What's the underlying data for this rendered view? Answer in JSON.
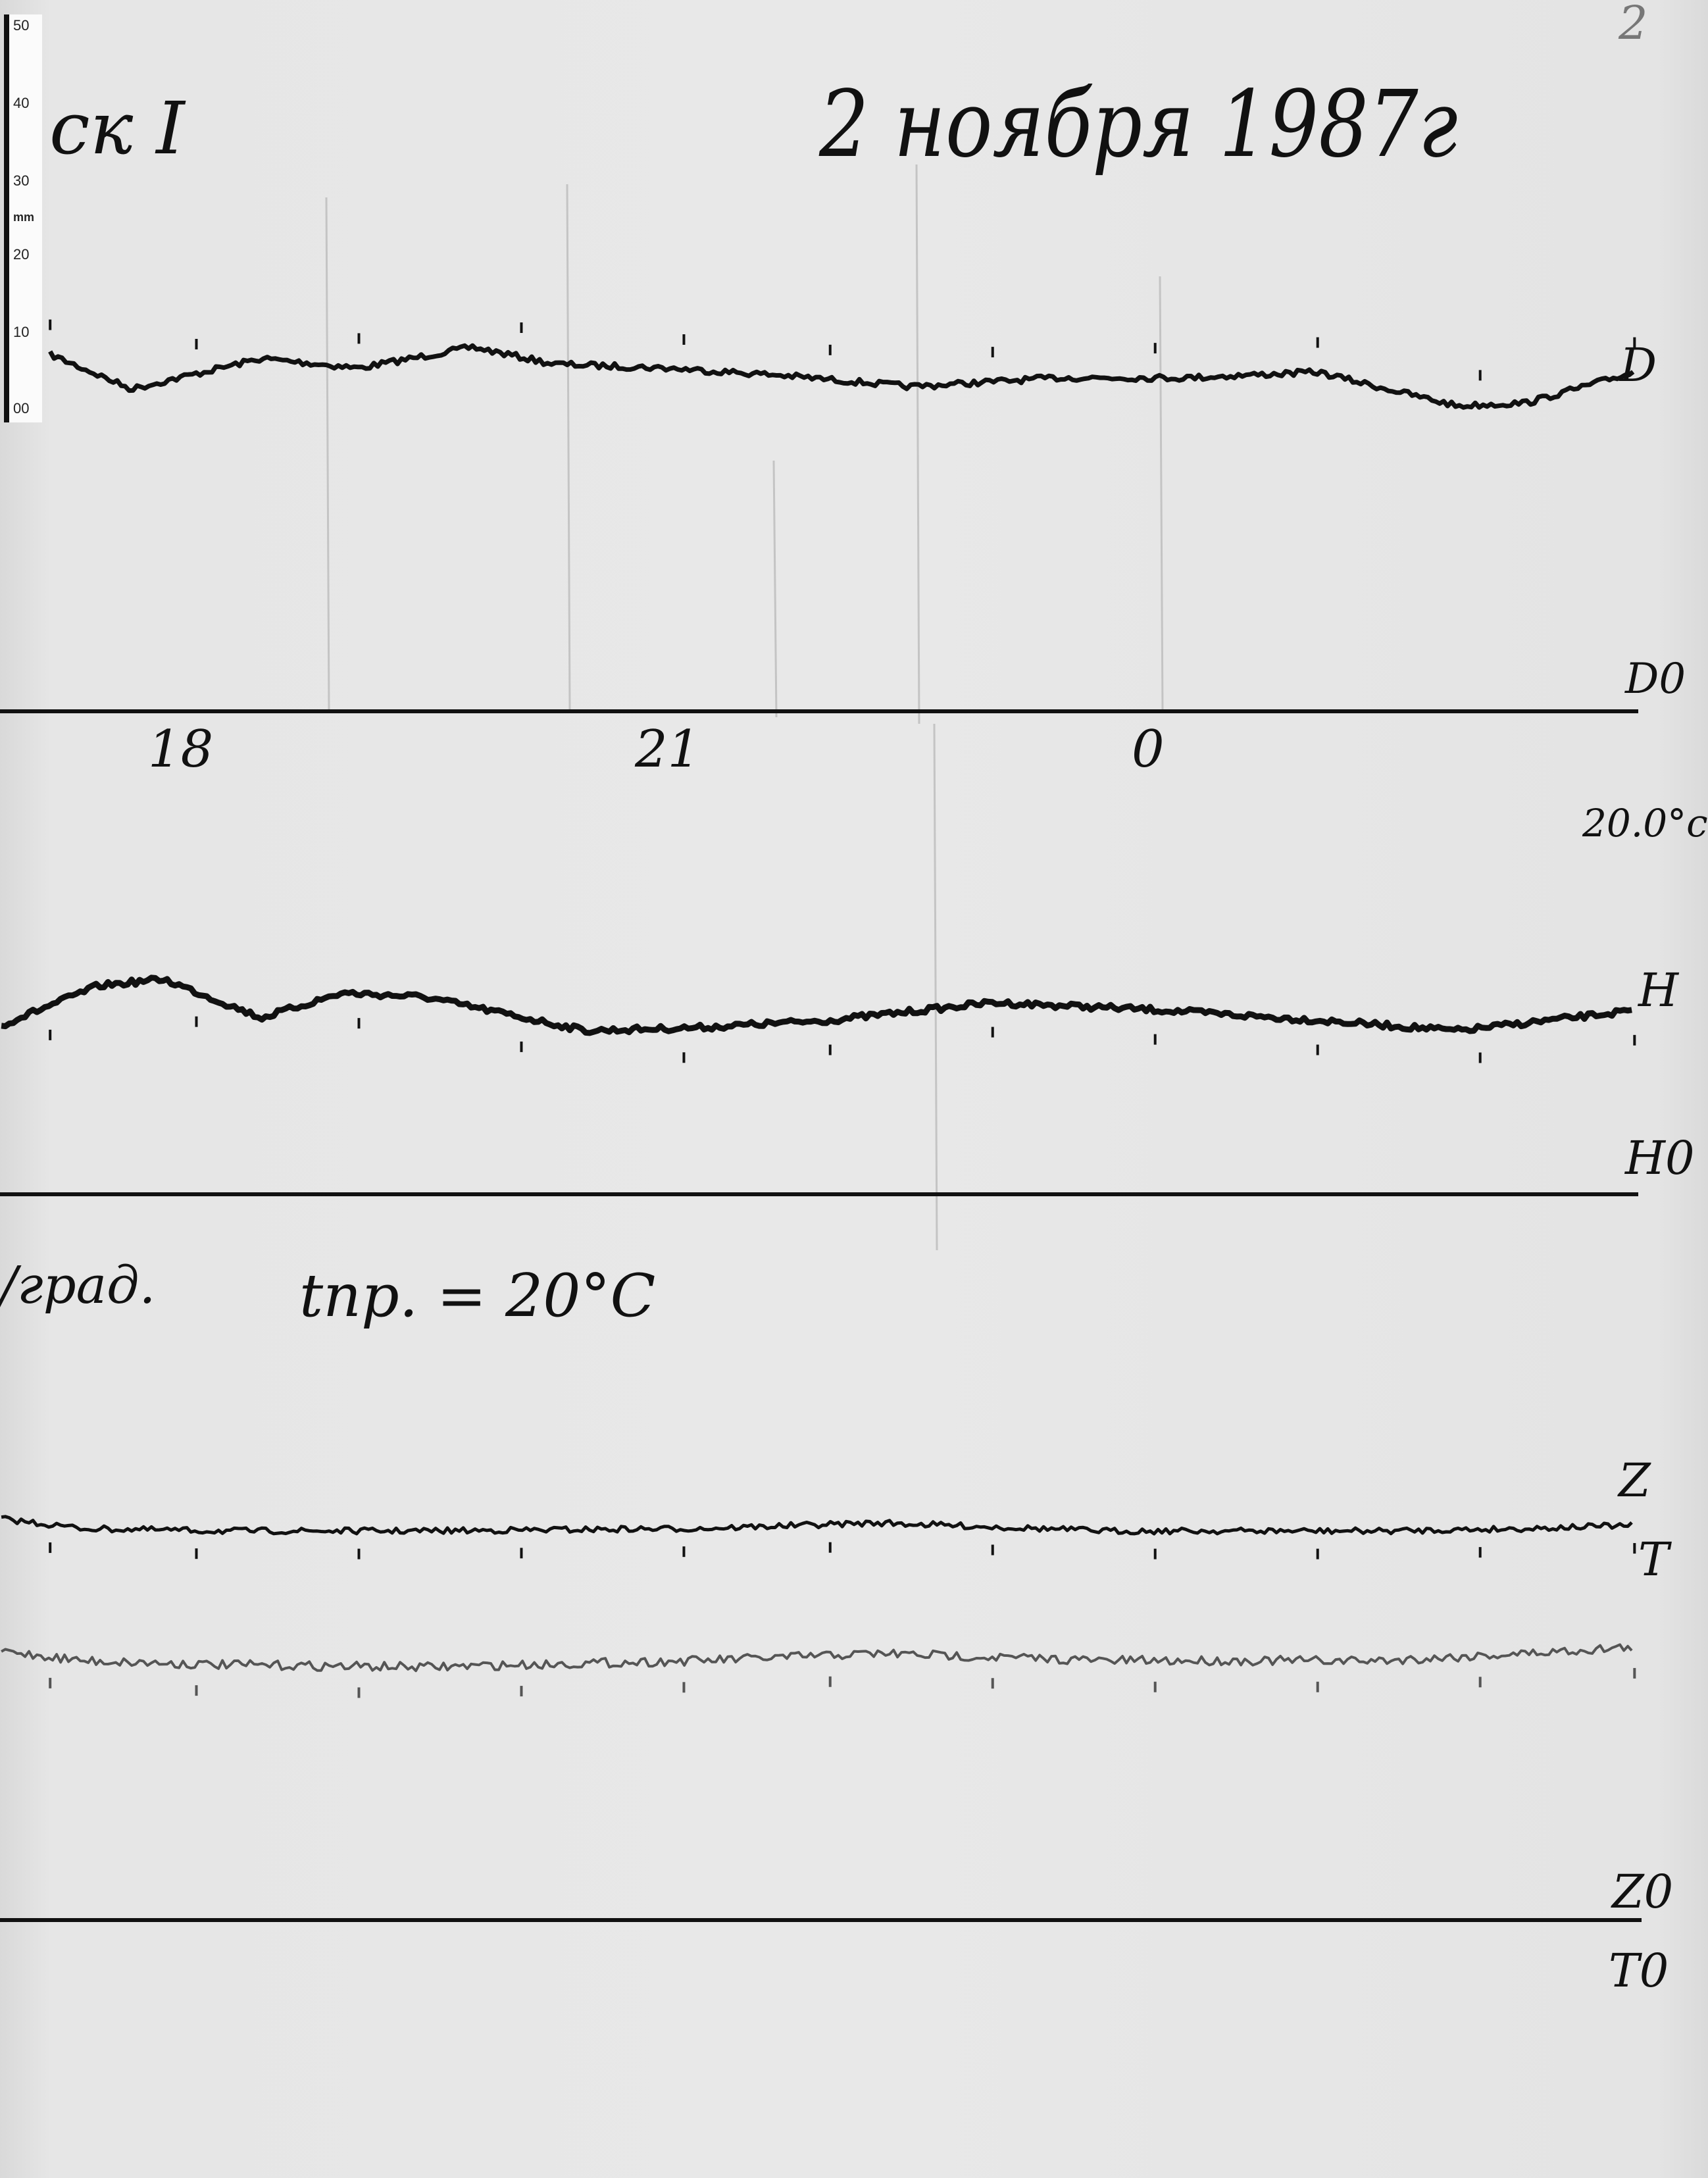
{
  "sheet": {
    "station_label": "ск I",
    "date_title": "2 ноября 1987г",
    "page_number": "2",
    "ruler": {
      "unit": "mm",
      "labels": [
        "50",
        "40",
        "30",
        "20",
        "10",
        "00"
      ]
    },
    "scale_note": "20.0°c",
    "sensitivity_note": "/град.",
    "temperature_note": "tпр. = 20°C"
  },
  "chart_data": {
    "type": "line",
    "title": "2 ноября 1987г",
    "xlabel": "",
    "ylabel": "",
    "x_tick_labels": [
      {
        "hour": 18,
        "label": "18"
      },
      {
        "hour": 21,
        "label": "21"
      },
      {
        "hour": 24,
        "label": "0"
      }
    ],
    "xlim": [
      17.0,
      27.05
    ],
    "y_unit": "mm above baseline",
    "grid": false,
    "hour_marks": [
      17.3,
      18.2,
      19.2,
      20.2,
      21.2,
      22.1,
      23.1,
      24.1,
      25.1,
      26.1,
      27.05
    ],
    "series": [
      {
        "name": "D",
        "baseline_label": "D0",
        "x": [
          17.3,
          17.8,
          18.6,
          19.2,
          19.9,
          20.4,
          21.1,
          21.8,
          22.6,
          23.5,
          24.3,
          25.1,
          25.96,
          26.39,
          27.05
        ],
        "values": [
          44.3,
          40.0,
          43.8,
          42.6,
          45.2,
          43.1,
          42.6,
          41.7,
          40.3,
          41.4,
          41.4,
          42.1,
          37.9,
          38.3,
          42.1
        ]
      },
      {
        "name": "H",
        "baseline_label": "H0",
        "x": [
          17.0,
          17.6,
          18.0,
          18.6,
          19.1,
          19.6,
          20.6,
          21.3,
          22.1,
          23.1,
          24.1,
          25.1,
          25.96,
          27.05
        ],
        "values": [
          21.0,
          25.9,
          26.7,
          21.9,
          25.0,
          24.5,
          20.3,
          20.7,
          21.6,
          23.8,
          22.9,
          21.6,
          20.3,
          22.8
        ]
      },
      {
        "name": "Z",
        "baseline_label": "Z0",
        "x": [
          17.0,
          17.5,
          18.3,
          19.6,
          21.3,
          22.4,
          23.8,
          25.5,
          26.39,
          27.05
        ],
        "values": [
          49.8,
          48.6,
          48.3,
          48.3,
          48.6,
          49.3,
          48.3,
          48.3,
          48.6,
          49.0
        ]
      },
      {
        "name": "T",
        "baseline_label": "T0",
        "x": [
          17.0,
          17.5,
          18.3,
          19.6,
          21.3,
          22.4,
          23.8,
          25.5,
          26.39,
          27.05
        ],
        "values": [
          33.4,
          32.2,
          31.7,
          31.4,
          32.2,
          33.1,
          32.2,
          32.2,
          33.1,
          33.9
        ]
      }
    ],
    "colors": {
      "ink": "#111111",
      "T_trace": "#555555",
      "paper": "#e8e8e8"
    }
  }
}
